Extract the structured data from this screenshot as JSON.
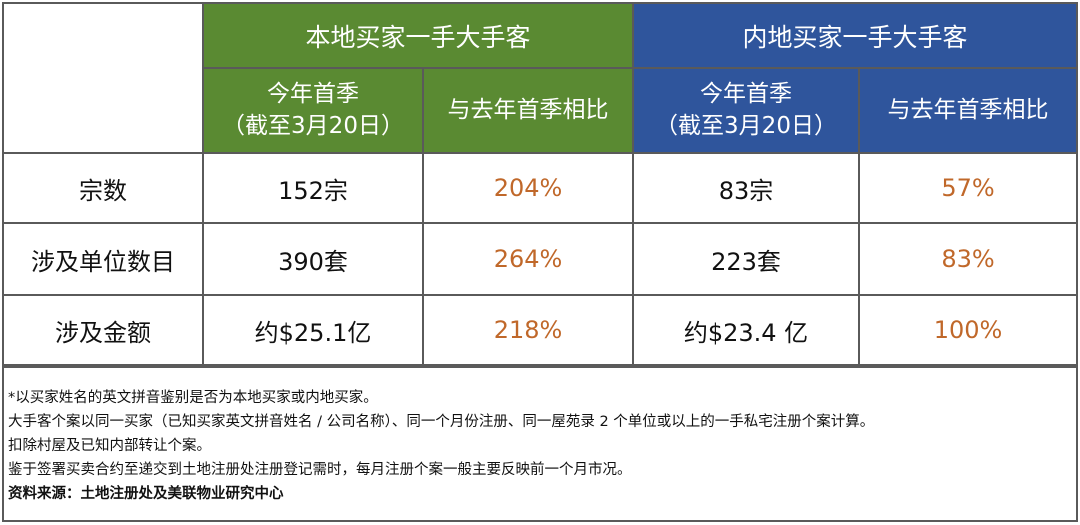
{
  "header": {
    "local_group": "本地买家一手大手客",
    "mainland_group": "内地买家一手大手客",
    "this_quarter_line1": "今年首季",
    "this_quarter_line2": "（截至3月20日）",
    "vs_last_year": "与去年首季相比"
  },
  "rows": [
    {
      "label": "宗数",
      "local_value": "152宗",
      "local_change": "204%",
      "mainland_value": "83宗",
      "mainland_change": "57%"
    },
    {
      "label": "涉及单位数目",
      "local_value": "390套",
      "local_change": "264%",
      "mainland_value": "223套",
      "mainland_change": "83%"
    },
    {
      "label": "涉及金额",
      "local_value": "约$25.1亿",
      "local_change": "218%",
      "mainland_value": "约$23.4 亿",
      "mainland_change": "100%"
    }
  ],
  "notes": [
    "*以买家姓名的英文拼音鉴别是否为本地买家或内地买家。",
    "大手客个案以同一买家（已知买家英文拼音姓名 / 公司名称）、同一个月份注册、同一屋苑录 2 个单位或以上的一手私宅注册个案计算。",
    "扣除村屋及已知内部转让个案。",
    "鉴于签署买卖合约至递交到土地注册处注册登记需时，每月注册个案一般主要反映前一个月市况。"
  ],
  "source": "资料来源：土地注册处及美联物业研究中心",
  "colors": {
    "local_header": "#5a8a32",
    "mainland_header": "#2f559c",
    "percent_text": "#c0682a",
    "border": "#5a5a5a"
  }
}
